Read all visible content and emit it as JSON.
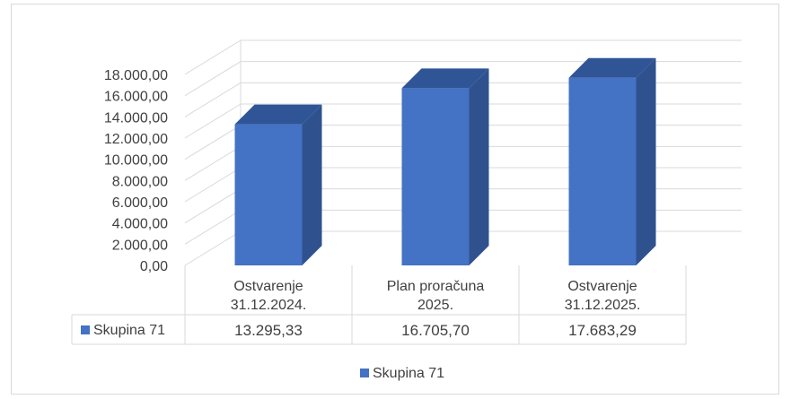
{
  "chart_data": {
    "type": "bar",
    "style": "3d-column-with-data-table",
    "categories": [
      "Ostvarenje 31.12.2024.",
      "Plan proračuna 2025.",
      "Ostvarenje 31.12.2025."
    ],
    "category_lines": [
      [
        "Ostvarenje",
        "31.12.2024."
      ],
      [
        "Plan proračuna",
        "2025."
      ],
      [
        "Ostvarenje",
        "31.12.2025."
      ]
    ],
    "series": [
      {
        "name": "Skupina 71",
        "values": [
          13295.33,
          16705.7,
          17683.29
        ],
        "value_labels": [
          "13.295,33",
          "16.705,70",
          "17.683,29"
        ],
        "color": "#4472c4"
      }
    ],
    "ylim": [
      0,
      18000
    ],
    "yticks": [
      {
        "value": 0,
        "label": "0,00"
      },
      {
        "value": 2000,
        "label": "2.000,00"
      },
      {
        "value": 4000,
        "label": "4.000,00"
      },
      {
        "value": 6000,
        "label": "6.000,00"
      },
      {
        "value": 8000,
        "label": "8.000,00"
      },
      {
        "value": 10000,
        "label": "10.000,00"
      },
      {
        "value": 12000,
        "label": "12.000,00"
      },
      {
        "value": 14000,
        "label": "14.000,00"
      },
      {
        "value": 16000,
        "label": "16.000,00"
      },
      {
        "value": 18000,
        "label": "18.000,00"
      }
    ],
    "grid": true,
    "legend": "bottom",
    "legend_label": "Skupina 71",
    "colors": {
      "bar_front": "#4472c4",
      "bar_side": "#2f528f",
      "bar_top": "#2f5597",
      "grid": "#d9d9d9"
    }
  }
}
